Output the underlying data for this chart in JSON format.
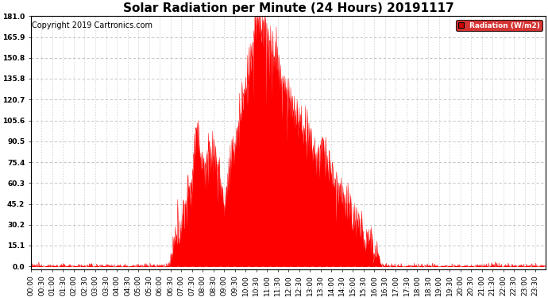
{
  "title": "Solar Radiation per Minute (24 Hours) 20191117",
  "copyright_text": "Copyright 2019 Cartronics.com",
  "legend_label": "Radiation (W/m2)",
  "y_ticks": [
    0.0,
    15.1,
    30.2,
    45.2,
    60.3,
    75.4,
    90.5,
    105.6,
    120.7,
    135.8,
    150.8,
    165.9,
    181.0
  ],
  "y_max": 181.0,
  "fill_color": "#FF0000",
  "line_color": "#FF0000",
  "background_color": "#FFFFFF",
  "grid_color": "#BBBBBB",
  "dashed_line_color": "#FF0000",
  "title_fontsize": 11,
  "copyright_fontsize": 7,
  "axis_fontsize": 6.5,
  "legend_bg": "#CC0000",
  "legend_text_color": "#FFFFFF",
  "sunrise_min": 385,
  "sunset_min": 980,
  "peak_min": 635,
  "peak_value": 181.0,
  "morning_peak_min": 460,
  "morning_peak_value": 102.0,
  "figwidth": 6.9,
  "figheight": 3.75,
  "dpi": 100
}
